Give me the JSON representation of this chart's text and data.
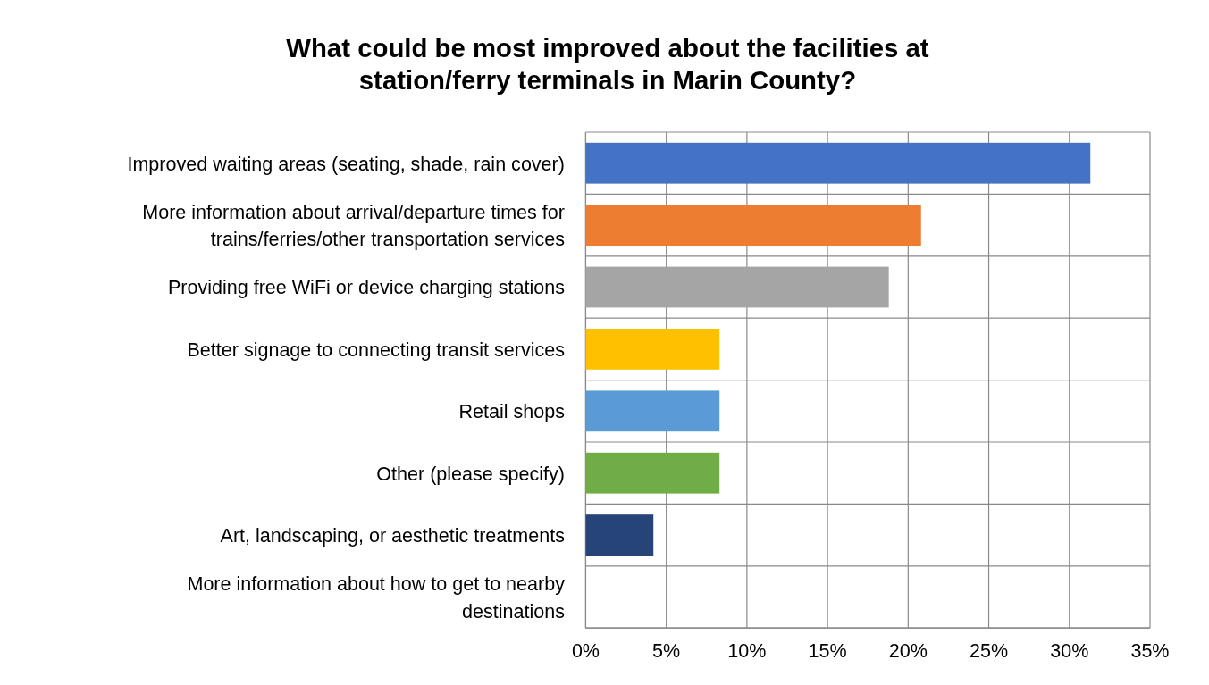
{
  "chart_data": {
    "type": "bar",
    "orientation": "horizontal",
    "title": "What could be most improved about the facilities at station/ferry terminals in Marin County?",
    "categories": [
      "Improved waiting areas (seating, shade, rain cover)",
      "More information about arrival/departure times for trains/ferries/other transportation services",
      "Providing free WiFi or device charging stations",
      "Better signage to connecting transit services",
      "Retail shops",
      "Other (please specify)",
      "Art, landscaping, or aesthetic treatments",
      "More information about how to get to nearby destinations"
    ],
    "values": [
      31.3,
      20.8,
      18.8,
      8.3,
      8.3,
      8.3,
      4.2,
      0
    ],
    "colors": [
      "#4472c4",
      "#ed7d31",
      "#a5a5a5",
      "#ffc000",
      "#5b9bd5",
      "#70ad47",
      "#264478",
      "#9e480e"
    ],
    "xlim": [
      0,
      35
    ],
    "xticks": [
      {
        "value": 0,
        "label": "0%"
      },
      {
        "value": 5,
        "label": "5%"
      },
      {
        "value": 10,
        "label": "10%"
      },
      {
        "value": 15,
        "label": "15%"
      },
      {
        "value": 20,
        "label": "20%"
      },
      {
        "value": 25,
        "label": "25%"
      },
      {
        "value": 30,
        "label": "30%"
      },
      {
        "value": 35,
        "label": "35%"
      }
    ],
    "grid": true
  }
}
